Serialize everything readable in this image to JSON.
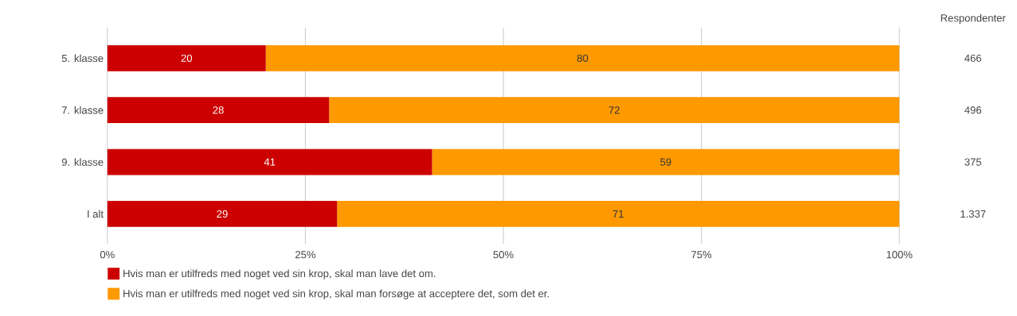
{
  "chart_data": {
    "type": "bar",
    "orientation": "horizontal",
    "stacked": true,
    "categories": [
      "5. klasse",
      "7. klasse",
      "9. klasse",
      "I alt"
    ],
    "series": [
      {
        "name": "Hvis man er utilfreds med noget ved sin krop, skal man lave det om.",
        "color": "#cc0000",
        "values": [
          20,
          28,
          41,
          29
        ]
      },
      {
        "name": "Hvis man er utilfreds med noget ved sin krop, skal man forsøge at acceptere det, som det er.",
        "color": "#ff9900",
        "values": [
          80,
          72,
          59,
          71
        ]
      }
    ],
    "xlim": [
      0,
      100
    ],
    "xticks": [
      {
        "value": 0,
        "label": "0%"
      },
      {
        "value": 25,
        "label": "25%"
      },
      {
        "value": 50,
        "label": "50%"
      },
      {
        "value": 75,
        "label": "75%"
      },
      {
        "value": 100,
        "label": "100%"
      }
    ],
    "grid": "x",
    "legend": "bottom",
    "data_labels": true,
    "annotations": [
      "Respondenter",
      "466",
      "496",
      "375",
      "1.337"
    ]
  }
}
